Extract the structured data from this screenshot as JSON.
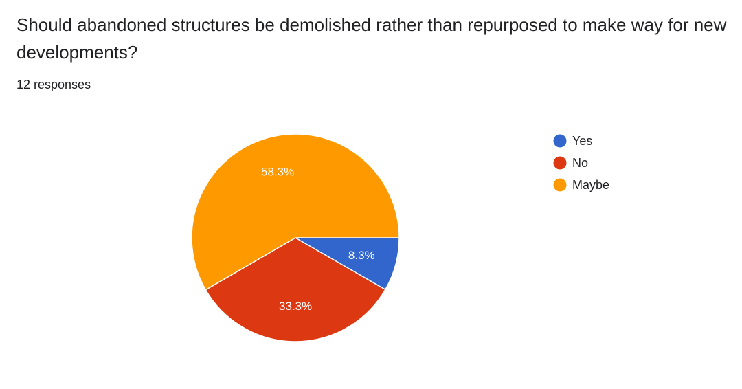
{
  "question": {
    "title": "Should abandoned structures be demolished rather than repurposed to make way for new developments?",
    "responses": "12 responses"
  },
  "chart_data": {
    "type": "pie",
    "categories": [
      "Yes",
      "No",
      "Maybe"
    ],
    "values": [
      8.3,
      33.3,
      58.3
    ],
    "labels": [
      "8.3%",
      "33.3%",
      "58.3%"
    ],
    "colors": [
      "#3366cc",
      "#dc3912",
      "#ff9900"
    ],
    "legend_position": "right"
  }
}
